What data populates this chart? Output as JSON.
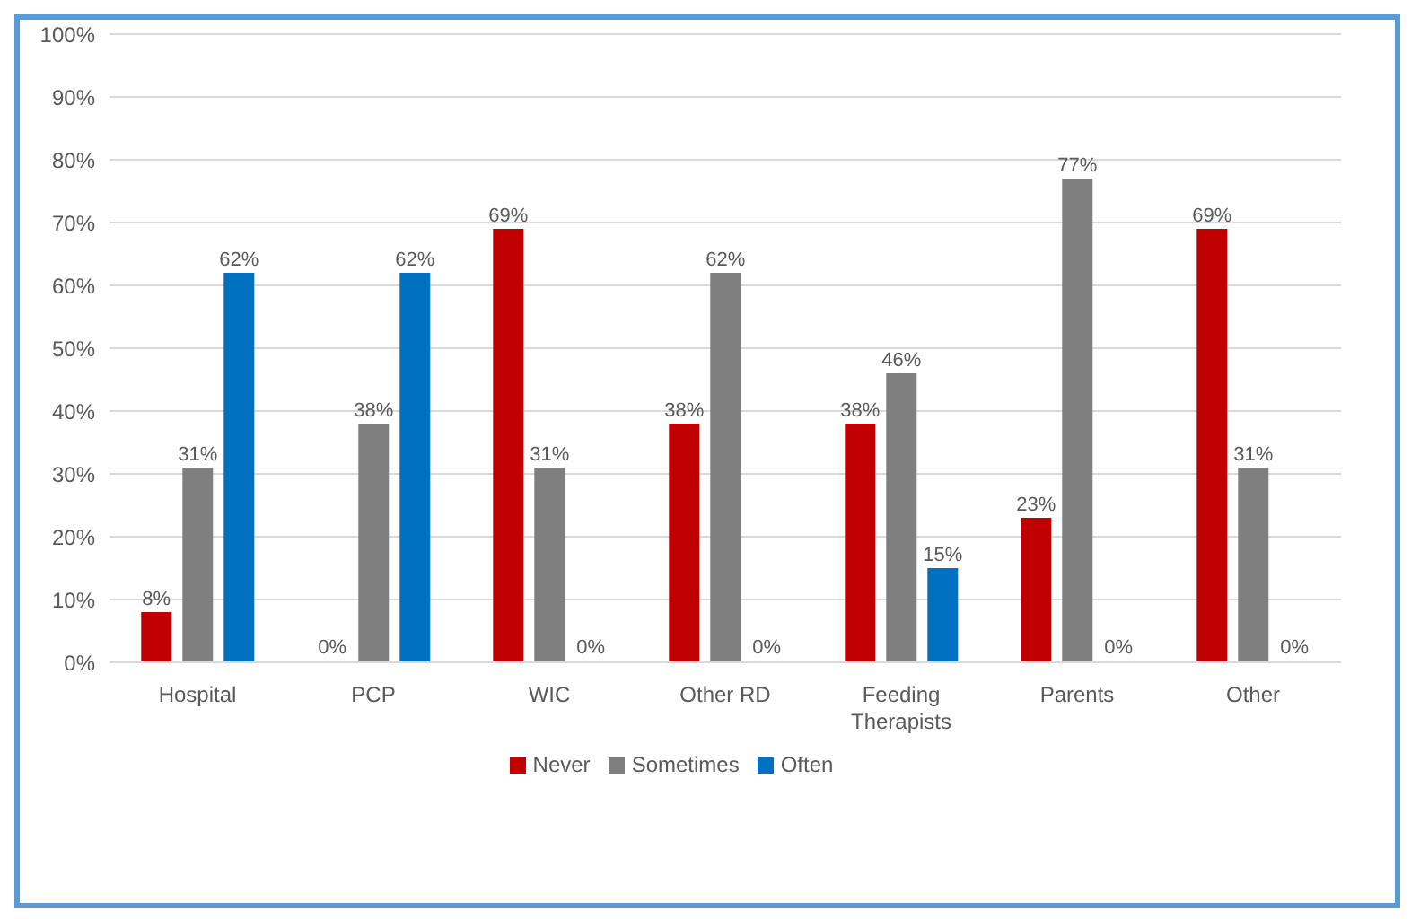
{
  "chart_data": {
    "type": "bar",
    "categories": [
      "Hospital",
      "PCP",
      "WIC",
      "Other RD",
      "Feeding Therapists",
      "Parents",
      "Other"
    ],
    "series": [
      {
        "name": "Never",
        "color": "#c00000",
        "values": [
          8,
          0,
          69,
          38,
          38,
          23,
          69
        ],
        "value_labels": [
          "8%",
          "0%",
          "69%",
          "38%",
          "38%",
          "23%",
          "69%"
        ]
      },
      {
        "name": "Sometimes",
        "color": "#7f7f7f",
        "values": [
          31,
          38,
          31,
          62,
          46,
          77,
          31
        ],
        "value_labels": [
          "31%",
          "38%",
          "31%",
          "62%",
          "46%",
          "77%",
          "31%"
        ]
      },
      {
        "name": "Often",
        "color": "#0070c0",
        "values": [
          62,
          62,
          0,
          0,
          15,
          0,
          0
        ],
        "value_labels": [
          "62%",
          "62%",
          "0%",
          "0%",
          "15%",
          "0%",
          "0%"
        ]
      }
    ],
    "ylim": [
      0,
      100
    ],
    "yticks": [
      {
        "value": 0,
        "label": "0%"
      },
      {
        "value": 10,
        "label": "10%"
      },
      {
        "value": 20,
        "label": "20%"
      },
      {
        "value": 30,
        "label": "30%"
      },
      {
        "value": 40,
        "label": "40%"
      },
      {
        "value": 50,
        "label": "50%"
      },
      {
        "value": 60,
        "label": "60%"
      },
      {
        "value": 70,
        "label": "70%"
      },
      {
        "value": 80,
        "label": "80%"
      },
      {
        "value": 90,
        "label": "90%"
      },
      {
        "value": 100,
        "label": "100%"
      }
    ],
    "grid": "y",
    "legend": "bottom"
  }
}
